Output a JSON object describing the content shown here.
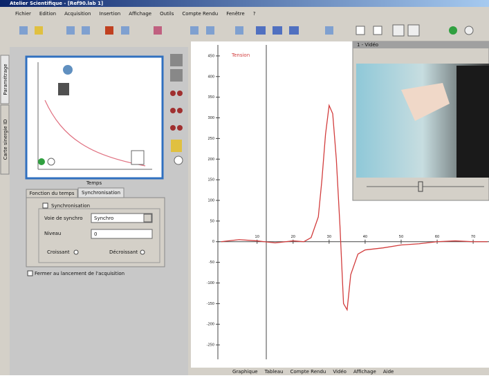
{
  "window": {
    "title": "Atelier Scientifique - [Ref90.lab 1]"
  },
  "menu": [
    "Fichier",
    "Edition",
    "Acquisition",
    "Insertion",
    "Affichage",
    "Outils",
    "Compte Rendu",
    "Fenêtre",
    "?"
  ],
  "side_tabs": [
    "Paramétrage",
    "Carte sinergie ID"
  ],
  "panel": {
    "axis_label": "Temps",
    "tabs": [
      "Fonction du temps",
      "Synchronisation"
    ],
    "sync_checkbox": "Synchronisation",
    "channel_label": "Voie de synchro",
    "channel_value": "Synchro",
    "level_label": "Niveau",
    "level_value": "0",
    "rising": "Croissant",
    "falling": "Décroissant",
    "close_checkbox": "Fermer au lancement de l'acquisition"
  },
  "graph": {
    "y_label": "Tension",
    "color": "#d23c3c",
    "x": [
      0,
      5,
      10,
      15,
      20,
      23,
      25,
      27,
      28,
      29,
      30,
      31,
      32,
      33,
      34,
      35,
      36,
      38,
      40,
      45,
      50,
      55,
      60,
      65,
      70,
      74
    ],
    "values": [
      0,
      5,
      2,
      -3,
      2,
      0,
      10,
      60,
      150,
      260,
      330,
      310,
      200,
      40,
      -150,
      -165,
      -80,
      -30,
      -20,
      -15,
      -8,
      -5,
      0,
      2,
      0,
      0
    ],
    "xlim": [
      -8,
      74.4
    ],
    "ylim": [
      -285,
      485
    ],
    "xticks": [
      10,
      20,
      30,
      40,
      50,
      60,
      70
    ],
    "yticks": [
      -250,
      -200,
      -150,
      -100,
      -50,
      0,
      50,
      100,
      150,
      200,
      250,
      300,
      350,
      400,
      450
    ]
  },
  "video": {
    "title": "1 - Vidéo"
  },
  "bottom_tabs": [
    "Graphique",
    "Tableau",
    "Compte Rendu",
    "Vidéo",
    "Affichage",
    "Aide"
  ]
}
